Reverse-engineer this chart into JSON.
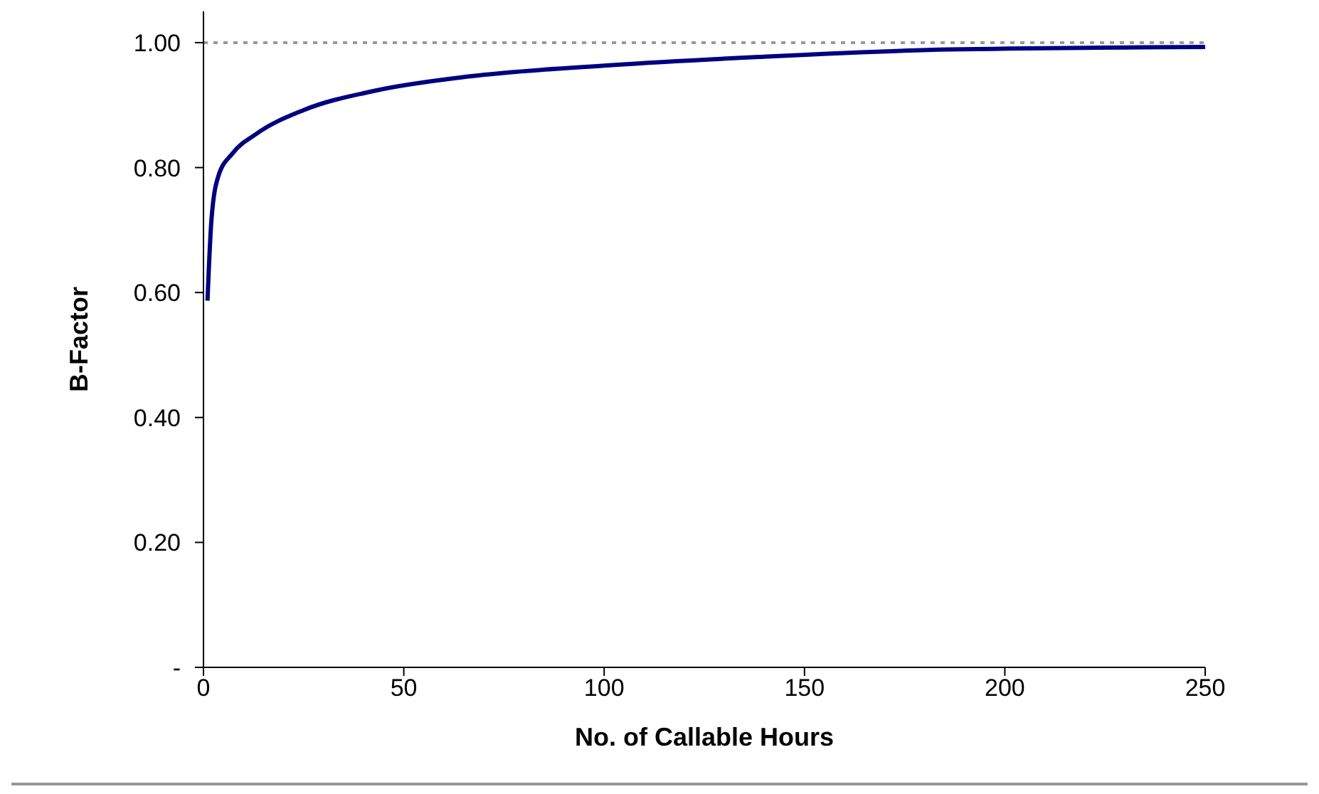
{
  "chart_data": {
    "type": "line",
    "xlabel": "No. of Callable Hours",
    "ylabel": "B-Factor",
    "x": [
      1,
      2,
      3.7,
      7.3,
      13.2,
      25,
      42.8,
      66.5,
      102,
      138.6,
      186,
      250
    ],
    "series": [
      {
        "color": "#000080",
        "values": [
          0.587,
          0.717,
          0.786,
          0.823,
          0.854,
          0.892,
          0.923,
          0.946,
          0.964,
          0.977,
          0.989,
          0.993
        ]
      }
    ],
    "xlim": [
      0,
      250
    ],
    "xticks": [
      0,
      50,
      100,
      150,
      200,
      250
    ],
    "ylim": [
      0,
      1.05
    ],
    "yticks": [
      {
        "value": 0,
        "label": "-"
      },
      {
        "value": 0.2,
        "label": "0.20"
      },
      {
        "value": 0.4,
        "label": "0.40"
      },
      {
        "value": 0.6,
        "label": "0.60"
      },
      {
        "value": 0.8,
        "label": "0.80"
      },
      {
        "value": 1,
        "label": "1.00"
      }
    ],
    "ref_lines": [
      {
        "axis": "y",
        "value": 1,
        "color": "#999999",
        "line_style": "dotted"
      }
    ],
    "grid": false,
    "legend": false,
    "marker": "none",
    "line_style": "solid"
  }
}
